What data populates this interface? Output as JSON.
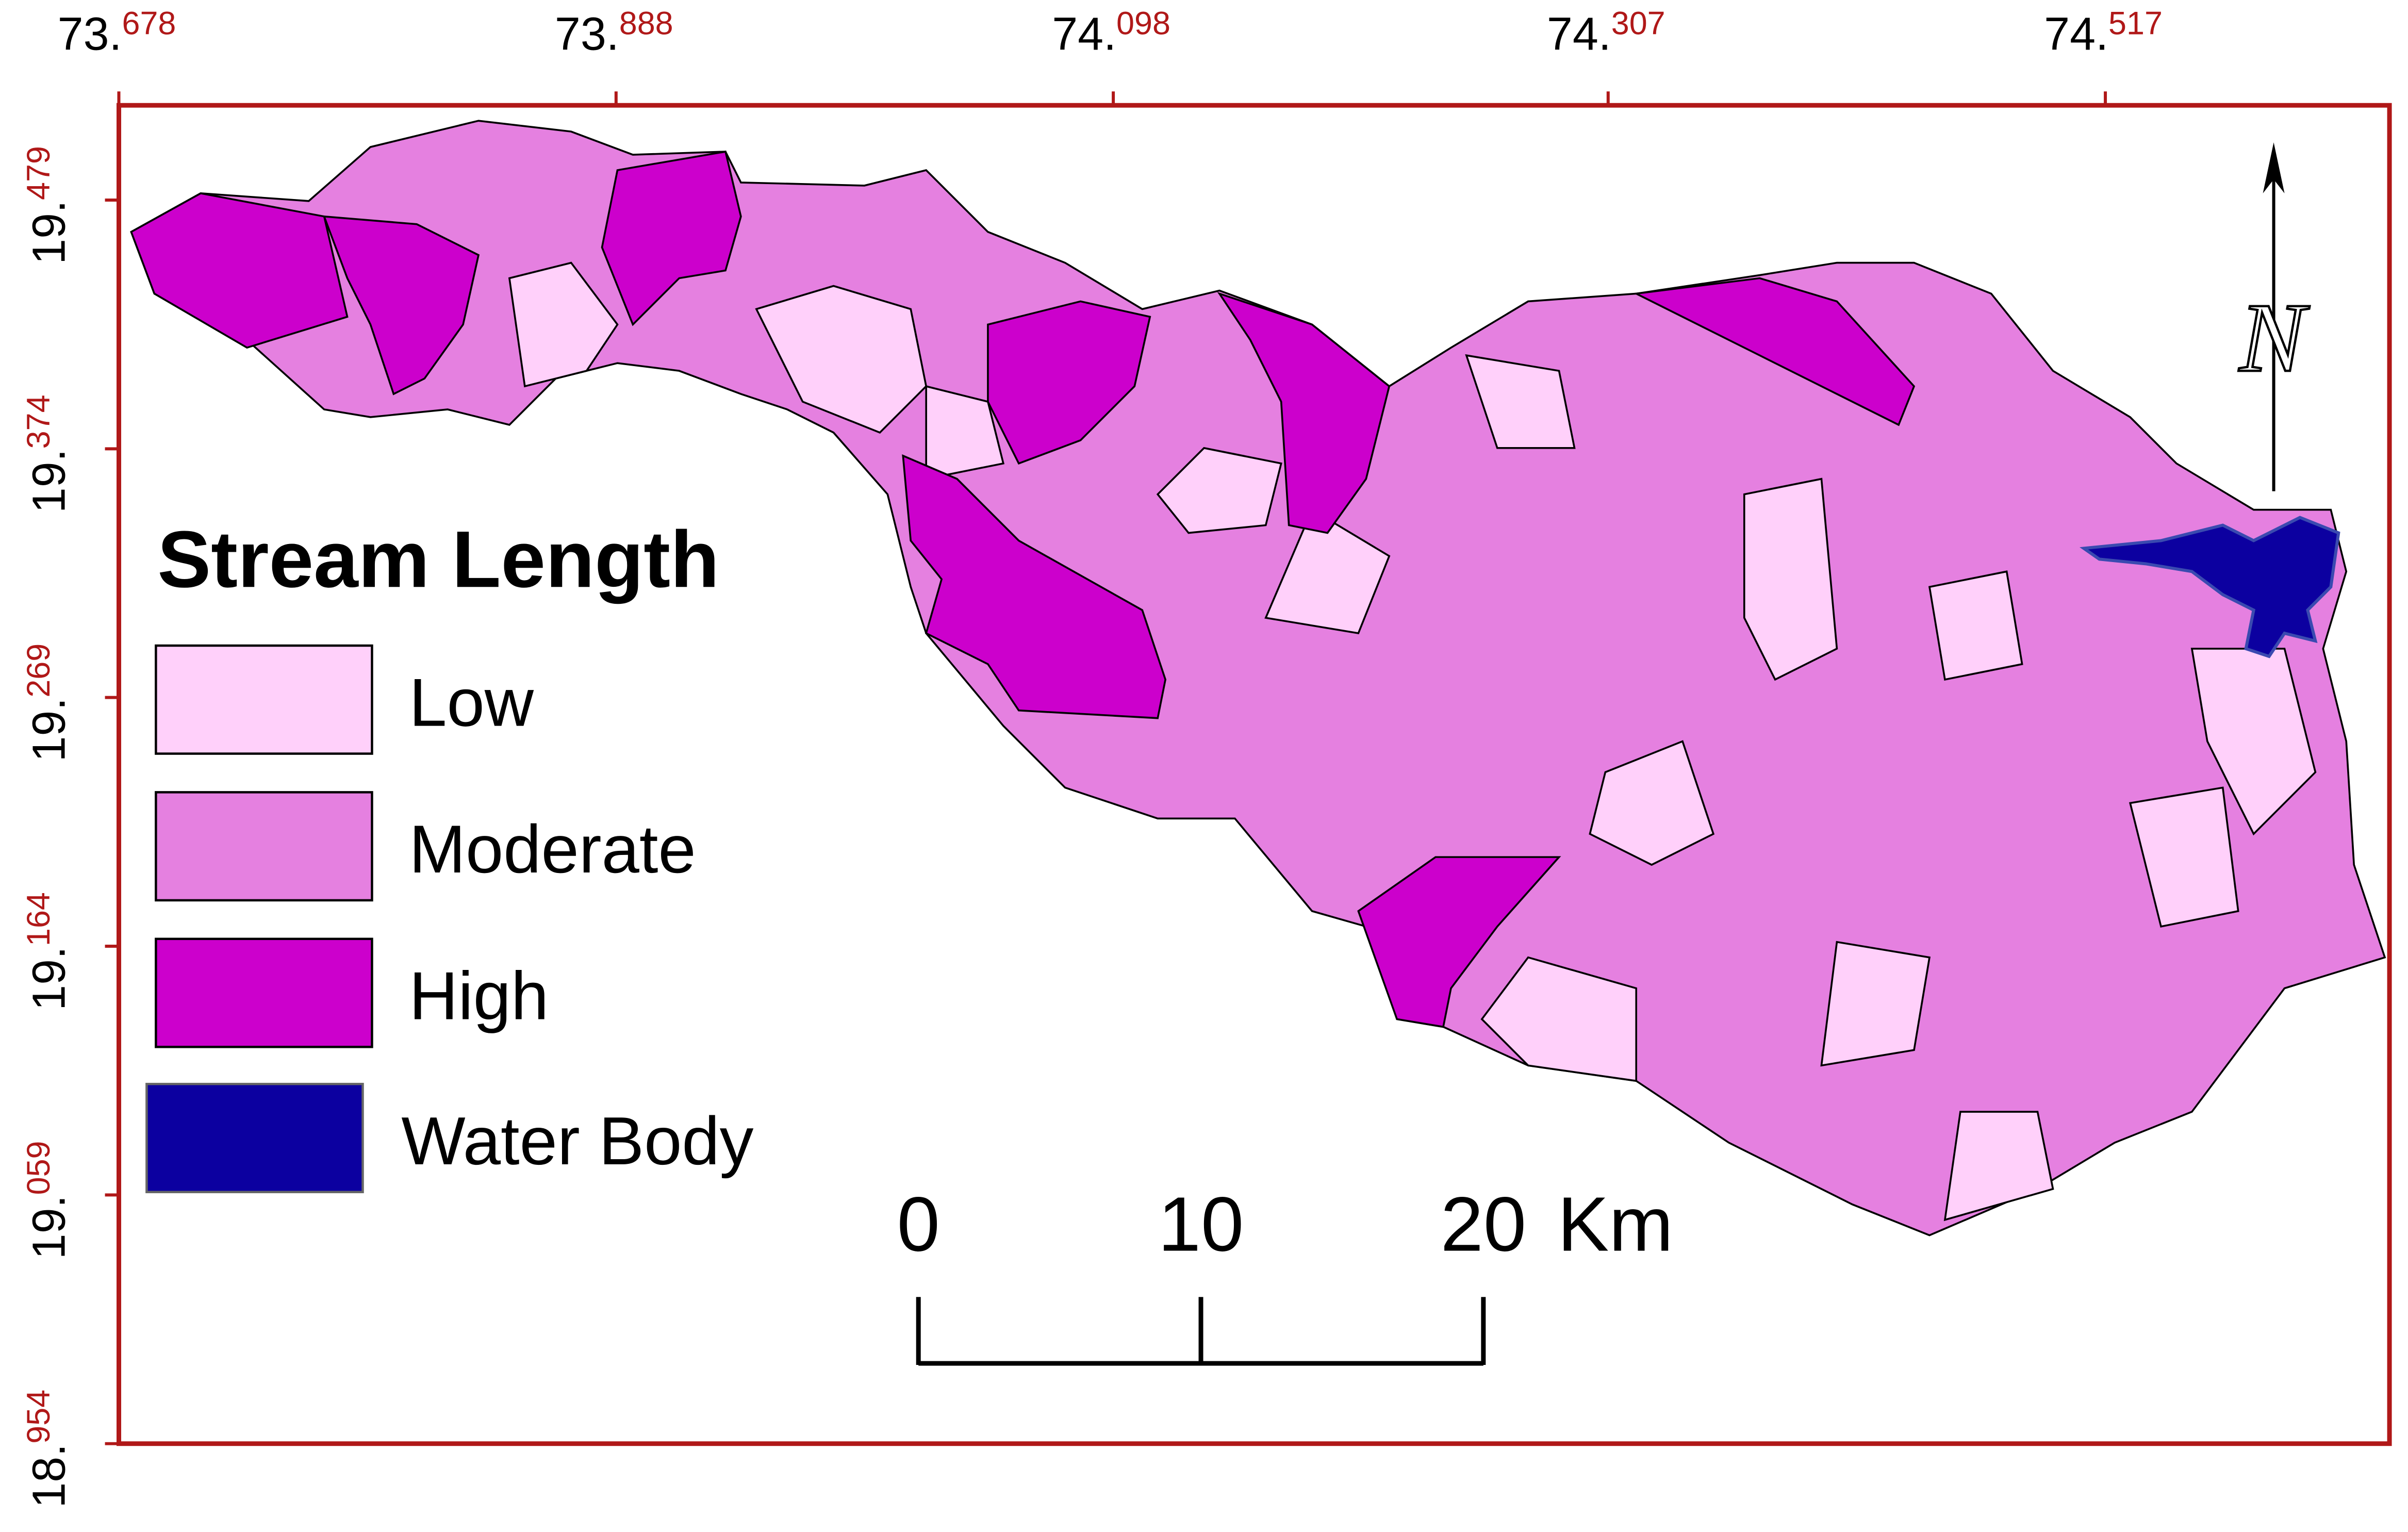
{
  "map": {
    "title": "Stream Length",
    "legend": [
      {
        "label": "Low",
        "color": "#ffd0fa"
      },
      {
        "label": "Moderate",
        "color": "#e580e0"
      },
      {
        "label": "High",
        "color": "#cc00cc"
      },
      {
        "label": "Water Body",
        "color": "#0c00a0"
      }
    ],
    "lon_lim": [
      73.678,
      74.637
    ],
    "lat_lim": [
      18.954,
      19.519
    ],
    "lon_ticks": [
      {
        "value": 73.678,
        "label": [
          "73.",
          "678"
        ]
      },
      {
        "value": 73.888,
        "label": [
          "73.",
          "888"
        ]
      },
      {
        "value": 74.098,
        "label": [
          "74.",
          "098"
        ]
      },
      {
        "value": 74.307,
        "label": [
          "74.",
          "307"
        ]
      },
      {
        "value": 74.517,
        "label": [
          "74.",
          "517"
        ]
      }
    ],
    "lat_ticks": [
      {
        "value": 19.479,
        "label": [
          "19.",
          "479"
        ]
      },
      {
        "value": 19.374,
        "label": [
          "19.",
          "374"
        ]
      },
      {
        "value": 19.269,
        "label": [
          "19.",
          "269"
        ]
      },
      {
        "value": 19.164,
        "label": [
          "19.",
          "164"
        ]
      },
      {
        "value": 19.059,
        "label": [
          "19.",
          "059"
        ]
      },
      {
        "value": 18.954,
        "label": [
          "18.",
          "954"
        ]
      }
    ],
    "scale_bar": {
      "ticks": [
        0,
        10,
        20
      ],
      "unit": "Km"
    },
    "north_label": "N"
  }
}
